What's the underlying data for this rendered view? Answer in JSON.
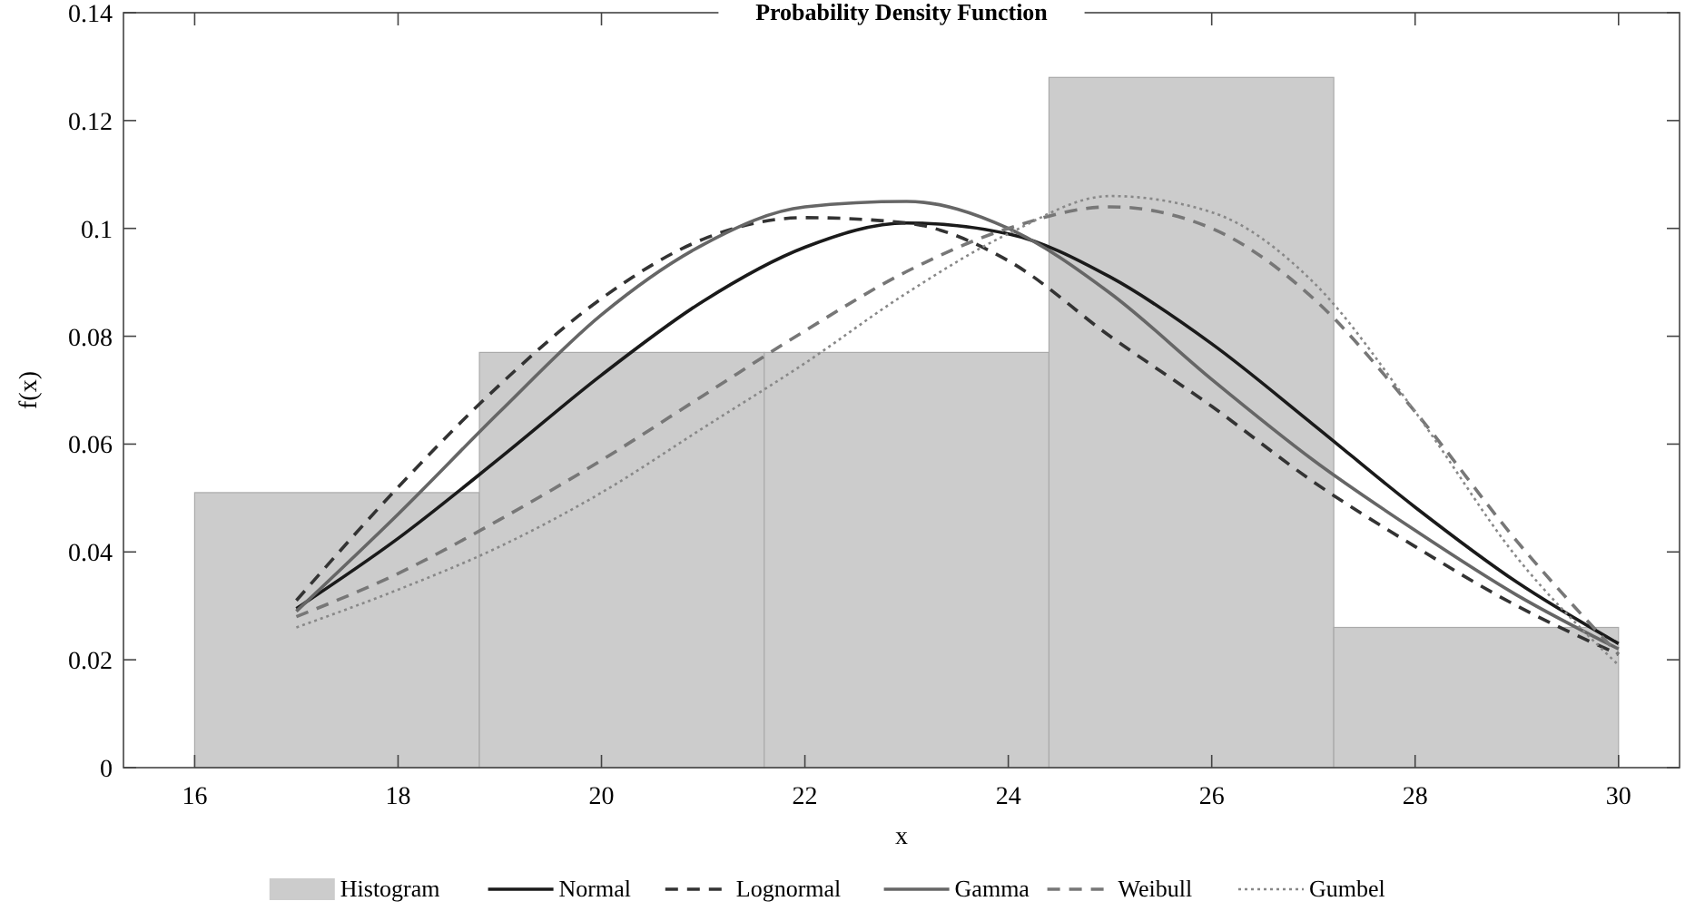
{
  "chart_data": {
    "type": "histogram",
    "title": "Probability Density Function",
    "xlabel": "x",
    "ylabel": "f(x)",
    "xlim": [
      15.3,
      30.6
    ],
    "ylim": [
      0,
      0.14
    ],
    "xticks": [
      16,
      18,
      20,
      22,
      24,
      26,
      28,
      30
    ],
    "yticks": [
      0,
      0.02,
      0.04,
      0.06,
      0.08,
      0.1,
      0.12,
      0.14
    ],
    "grid": false,
    "legend": "bottom",
    "series": [
      {
        "name": "Histogram",
        "color": "#cccccc",
        "bins": [
          16,
          18.8,
          21.6,
          24.4,
          27.2,
          30
        ],
        "values": [
          0.051,
          0.077,
          0.077,
          0.128,
          0.026
        ]
      },
      {
        "type": "line",
        "name": "Normal",
        "color": "#1a1a1a",
        "line_style": "solid",
        "x": [
          17,
          18,
          19,
          20,
          21,
          22,
          23,
          24,
          25,
          26,
          27,
          28,
          29,
          30
        ],
        "values": [
          0.0295,
          0.0425,
          0.0574,
          0.0728,
          0.0865,
          0.0965,
          0.101,
          0.099,
          0.091,
          0.0786,
          0.0636,
          0.0483,
          0.0344,
          0.023
        ]
      },
      {
        "type": "line",
        "name": "Lognormal",
        "color": "#333333",
        "line_style": "dashed",
        "x": [
          17,
          18,
          19,
          20,
          21,
          22,
          23,
          24,
          25,
          26,
          27,
          28,
          29,
          30
        ],
        "values": [
          0.031,
          0.052,
          0.071,
          0.087,
          0.098,
          0.102,
          0.101,
          0.094,
          0.08,
          0.067,
          0.053,
          0.041,
          0.03,
          0.021
        ]
      },
      {
        "type": "line",
        "name": "Gamma",
        "color": "#666666",
        "line_style": "solid",
        "x": [
          17,
          18,
          19,
          20,
          21,
          22,
          23,
          24,
          25,
          26,
          27,
          28,
          29,
          30
        ],
        "values": [
          0.029,
          0.047,
          0.066,
          0.084,
          0.097,
          0.104,
          0.105,
          0.1,
          0.088,
          0.072,
          0.057,
          0.044,
          0.032,
          0.022
        ]
      },
      {
        "type": "line",
        "name": "Weibull",
        "color": "#777777",
        "line_style": "dashed",
        "x": [
          17,
          18,
          19,
          20,
          21,
          22,
          23,
          24,
          25,
          26,
          27,
          28,
          29,
          30
        ],
        "values": [
          0.028,
          0.036,
          0.046,
          0.057,
          0.069,
          0.081,
          0.092,
          0.1,
          0.104,
          0.1,
          0.087,
          0.066,
          0.042,
          0.021
        ]
      },
      {
        "type": "line",
        "name": "Gumbel",
        "color": "#888888",
        "line_style": "dotted",
        "x": [
          17,
          18,
          19,
          20,
          21,
          22,
          23,
          24,
          25,
          26,
          27,
          28,
          29,
          30
        ],
        "values": [
          0.026,
          0.033,
          0.041,
          0.051,
          0.063,
          0.075,
          0.088,
          0.099,
          0.106,
          0.103,
          0.09,
          0.066,
          0.039,
          0.019
        ]
      }
    ]
  }
}
